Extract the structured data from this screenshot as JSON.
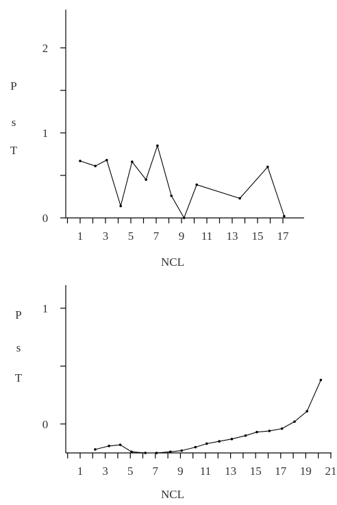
{
  "chart_data": [
    {
      "type": "line",
      "xlabel": "NCL",
      "ylabel_letters": [
        "P",
        "s",
        "T"
      ],
      "x_ticks": [
        1,
        3,
        5,
        7,
        9,
        11,
        13,
        15,
        17
      ],
      "y_ticks": [
        0,
        1,
        2
      ],
      "xlim": [
        0,
        18.3
      ],
      "ylim": [
        0,
        2.45
      ],
      "grid": false,
      "x": [
        1,
        2.2,
        3.1,
        4.2,
        5.1,
        6.2,
        7.1,
        8.2,
        9.2,
        10.2,
        13.6,
        15.8,
        17.1
      ],
      "values": [
        0.67,
        0.61,
        0.68,
        0.14,
        0.66,
        0.45,
        0.85,
        0.26,
        0.0,
        0.39,
        0.23,
        0.6,
        0.02
      ]
    },
    {
      "type": "line",
      "xlabel": "NCL",
      "ylabel_letters": [
        "P",
        "s",
        "T"
      ],
      "x_ticks": [
        1,
        3,
        5,
        7,
        9,
        11,
        13,
        15,
        17,
        19,
        21
      ],
      "y_ticks": [
        0,
        1
      ],
      "xlim": [
        -0.8,
        21.7
      ],
      "ylim": [
        -0.25,
        1.2
      ],
      "grid": false,
      "x": [
        2.2,
        3.3,
        4.2,
        5.1,
        6.2,
        7.1,
        8.2,
        9.1,
        10.2,
        11.1,
        12.1,
        13.1,
        14.2,
        15.1,
        16.1,
        17.1,
        18.1,
        19.1,
        20.2
      ],
      "values": [
        -0.22,
        -0.19,
        -0.18,
        -0.24,
        -0.25,
        -0.25,
        -0.24,
        -0.23,
        -0.2,
        -0.17,
        -0.15,
        -0.13,
        -0.1,
        -0.07,
        -0.06,
        -0.04,
        0.02,
        0.11,
        0.38
      ]
    }
  ]
}
